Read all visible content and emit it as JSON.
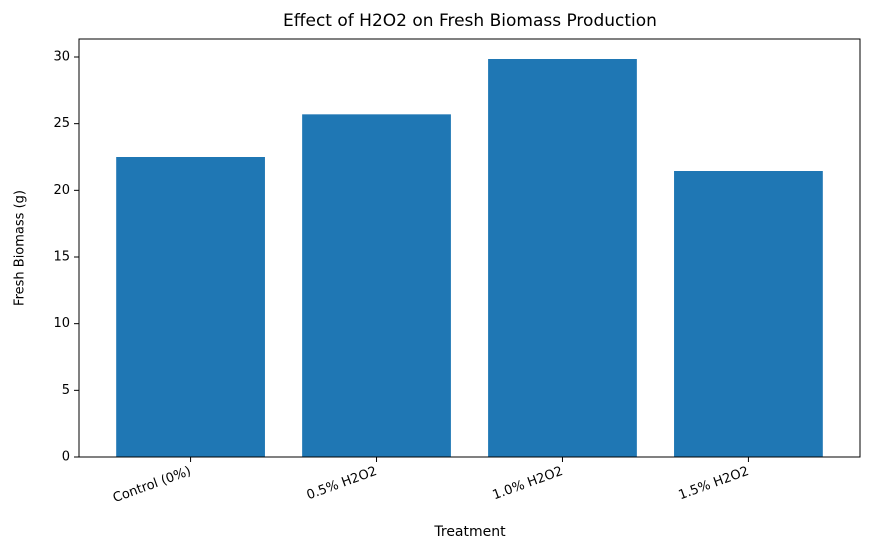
{
  "chart_data": {
    "type": "bar",
    "title": "Effect of H2O2 on Fresh Biomass Production",
    "x_label": "Treatment",
    "y_label": "Fresh Biomass (g)",
    "categories": [
      "Control (0%)",
      "0.5% H2O2",
      "1.0% H2O2",
      "1.5% H2O2"
    ],
    "values": [
      22.5,
      25.7,
      29.85,
      21.45
    ],
    "color": "#1f77b4",
    "ylim": [
      0,
      31.35
    ],
    "yticks": [
      0,
      5,
      10,
      15,
      20,
      25,
      30
    ],
    "grid": false
  }
}
